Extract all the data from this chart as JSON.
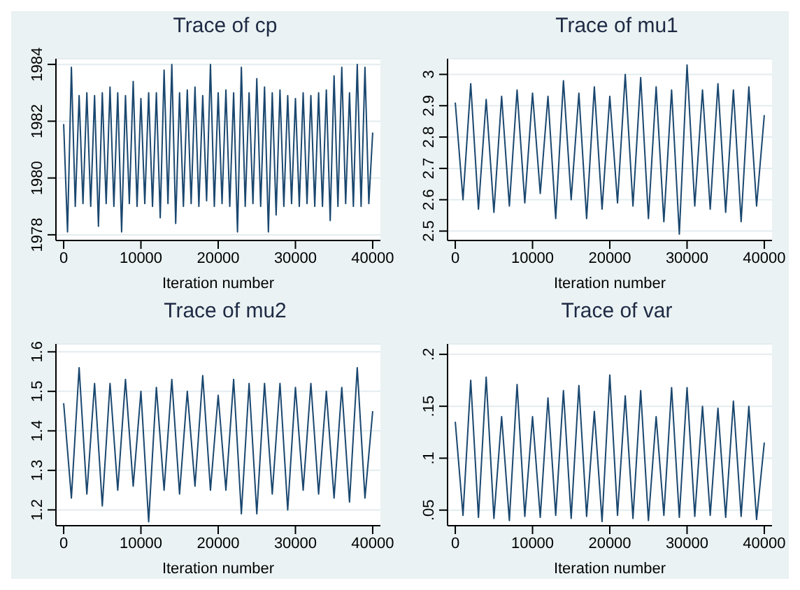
{
  "chart_data": [
    {
      "type": "line",
      "title": "Trace of cp",
      "xlabel": "Iteration number",
      "grid": "y",
      "legend": false,
      "marker": "none",
      "line_style": "solid",
      "xlim": [
        -1000,
        41000
      ],
      "xticks": [
        0,
        10000,
        20000,
        30000,
        40000
      ],
      "ylim": [
        1977.8,
        1984.2
      ],
      "yticks": [
        1978,
        1980,
        1982,
        1984
      ],
      "x": [
        0,
        500,
        1000,
        1500,
        2000,
        2500,
        3000,
        3500,
        4000,
        4500,
        5000,
        5500,
        6000,
        6500,
        7000,
        7500,
        8000,
        8500,
        9000,
        9500,
        10000,
        10500,
        11000,
        11500,
        12000,
        12500,
        13000,
        13500,
        14000,
        14500,
        15000,
        15500,
        16000,
        16500,
        17000,
        17500,
        18000,
        18500,
        19000,
        19500,
        20000,
        20500,
        21000,
        21500,
        22000,
        22500,
        23000,
        23500,
        24000,
        24500,
        25000,
        25500,
        26000,
        26500,
        27000,
        27500,
        28000,
        28500,
        29000,
        29500,
        30000,
        30500,
        31000,
        31500,
        32000,
        32500,
        33000,
        33500,
        34000,
        34500,
        35000,
        35500,
        36000,
        36500,
        37000,
        37500,
        38000,
        38500,
        39000,
        39500,
        40000
      ],
      "series": [
        {
          "color": "#1a476f",
          "values": [
            1981.9,
            1978.1,
            1983.9,
            1979.0,
            1982.9,
            1979.1,
            1983.0,
            1979.0,
            1982.9,
            1978.3,
            1983.0,
            1979.1,
            1983.2,
            1979.0,
            1983.0,
            1978.1,
            1982.9,
            1979.1,
            1983.4,
            1979.0,
            1982.8,
            1979.1,
            1983.0,
            1979.0,
            1983.0,
            1978.6,
            1983.8,
            1979.1,
            1984.0,
            1978.4,
            1983.0,
            1979.0,
            1983.1,
            1979.1,
            1983.2,
            1979.0,
            1982.9,
            1979.2,
            1984.0,
            1979.0,
            1983.0,
            1979.1,
            1983.1,
            1979.0,
            1983.0,
            1978.1,
            1983.9,
            1979.0,
            1983.0,
            1979.1,
            1983.5,
            1979.0,
            1983.2,
            1978.1,
            1983.0,
            1978.7,
            1983.1,
            1979.0,
            1982.9,
            1979.1,
            1982.8,
            1979.0,
            1983.0,
            1979.1,
            1982.9,
            1979.0,
            1983.0,
            1979.0,
            1983.1,
            1978.5,
            1983.6,
            1979.0,
            1983.9,
            1979.1,
            1983.0,
            1979.0,
            1984.0,
            1979.0,
            1983.9,
            1979.1,
            1981.6
          ]
        }
      ]
    },
    {
      "type": "line",
      "title": "Trace of mu1",
      "xlabel": "Iteration number",
      "grid": "y",
      "legend": false,
      "marker": "none",
      "line_style": "solid",
      "xlim": [
        -1000,
        41000
      ],
      "xticks": [
        0,
        10000,
        20000,
        30000,
        40000
      ],
      "ylim": [
        2.47,
        3.05
      ],
      "yticks": [
        2.5,
        2.6,
        2.7,
        2.8,
        2.9,
        3
      ],
      "x": [
        0,
        1000,
        2000,
        3000,
        4000,
        5000,
        6000,
        7000,
        8000,
        9000,
        10000,
        11000,
        12000,
        13000,
        14000,
        15000,
        16000,
        17000,
        18000,
        19000,
        20000,
        21000,
        22000,
        23000,
        24000,
        25000,
        26000,
        27000,
        28000,
        29000,
        30000,
        31000,
        32000,
        33000,
        34000,
        35000,
        36000,
        37000,
        38000,
        39000,
        40000
      ],
      "series": [
        {
          "color": "#1a476f",
          "values": [
            2.91,
            2.6,
            2.97,
            2.57,
            2.92,
            2.56,
            2.93,
            2.58,
            2.95,
            2.59,
            2.94,
            2.62,
            2.93,
            2.54,
            2.98,
            2.6,
            2.94,
            2.54,
            2.96,
            2.57,
            2.93,
            2.59,
            3.0,
            2.58,
            2.99,
            2.54,
            2.96,
            2.53,
            2.95,
            2.49,
            3.03,
            2.58,
            2.95,
            2.57,
            2.97,
            2.56,
            2.95,
            2.53,
            2.96,
            2.58,
            2.87
          ]
        }
      ]
    },
    {
      "type": "line",
      "title": "Trace of mu2",
      "xlabel": "Iteration number",
      "grid": "y",
      "legend": false,
      "marker": "none",
      "line_style": "solid",
      "xlim": [
        -1000,
        41000
      ],
      "xticks": [
        0,
        10000,
        20000,
        30000,
        40000
      ],
      "ylim": [
        1.16,
        1.62
      ],
      "yticks": [
        1.2,
        1.3,
        1.4,
        1.5,
        1.6
      ],
      "x": [
        0,
        1000,
        2000,
        3000,
        4000,
        5000,
        6000,
        7000,
        8000,
        9000,
        10000,
        11000,
        12000,
        13000,
        14000,
        15000,
        16000,
        17000,
        18000,
        19000,
        20000,
        21000,
        22000,
        23000,
        24000,
        25000,
        26000,
        27000,
        28000,
        29000,
        30000,
        31000,
        32000,
        33000,
        34000,
        35000,
        36000,
        37000,
        38000,
        39000,
        40000
      ],
      "series": [
        {
          "color": "#1a476f",
          "values": [
            1.47,
            1.23,
            1.56,
            1.24,
            1.52,
            1.21,
            1.52,
            1.25,
            1.53,
            1.26,
            1.5,
            1.17,
            1.51,
            1.25,
            1.53,
            1.24,
            1.5,
            1.26,
            1.54,
            1.25,
            1.49,
            1.25,
            1.53,
            1.19,
            1.52,
            1.19,
            1.52,
            1.24,
            1.52,
            1.2,
            1.51,
            1.25,
            1.52,
            1.24,
            1.5,
            1.23,
            1.51,
            1.22,
            1.56,
            1.23,
            1.45
          ]
        }
      ]
    },
    {
      "type": "line",
      "title": "Trace of var",
      "xlabel": "Iteration number",
      "grid": "y",
      "legend": false,
      "marker": "none",
      "line_style": "solid",
      "xlim": [
        -1000,
        41000
      ],
      "xticks": [
        0,
        10000,
        20000,
        30000,
        40000
      ],
      "ylim": [
        0.035,
        0.21
      ],
      "yticks": [
        {
          "value": 0.05,
          "label": ".05"
        },
        {
          "value": 0.1,
          "label": ".1"
        },
        {
          "value": 0.15,
          "label": ".15"
        },
        {
          "value": 0.2,
          "label": ".2"
        }
      ],
      "x": [
        0,
        1000,
        2000,
        3000,
        4000,
        5000,
        6000,
        7000,
        8000,
        9000,
        10000,
        11000,
        12000,
        13000,
        14000,
        15000,
        16000,
        17000,
        18000,
        19000,
        20000,
        21000,
        22000,
        23000,
        24000,
        25000,
        26000,
        27000,
        28000,
        29000,
        30000,
        31000,
        32000,
        33000,
        34000,
        35000,
        36000,
        37000,
        38000,
        39000,
        40000
      ],
      "series": [
        {
          "color": "#1a476f",
          "values": [
            0.135,
            0.045,
            0.175,
            0.043,
            0.178,
            0.042,
            0.14,
            0.04,
            0.171,
            0.044,
            0.14,
            0.043,
            0.158,
            0.045,
            0.165,
            0.042,
            0.17,
            0.044,
            0.145,
            0.039,
            0.18,
            0.045,
            0.16,
            0.042,
            0.165,
            0.04,
            0.14,
            0.045,
            0.168,
            0.043,
            0.168,
            0.044,
            0.15,
            0.045,
            0.148,
            0.043,
            0.155,
            0.044,
            0.15,
            0.041,
            0.115
          ]
        }
      ]
    }
  ]
}
